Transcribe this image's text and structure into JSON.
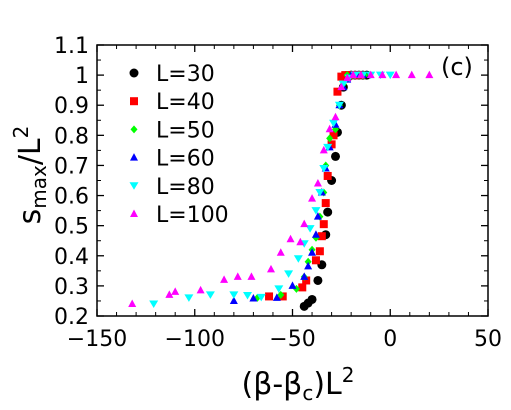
{
  "chart_data": {
    "type": "scatter",
    "panel_label": "(c)",
    "xlabel": {
      "prefix": "(β-β",
      "sub": "c",
      "mid": ")L",
      "sup": "2"
    },
    "ylabel": {
      "main": "s",
      "sub": "max",
      "mid": "/L",
      "sup": "2"
    },
    "xlim": [
      -150,
      50
    ],
    "ylim": [
      0.2,
      1.1
    ],
    "xticks": [
      -150,
      -100,
      -50,
      0,
      50
    ],
    "xtick_labels": [
      "−150",
      "−100",
      "−50",
      "0",
      "50"
    ],
    "yticks": [
      0.2,
      0.3,
      0.4,
      0.5,
      0.6,
      0.7,
      0.8,
      0.9,
      1.0,
      1.1
    ],
    "ytick_labels": [
      "0.2",
      "0.3",
      "0.4",
      "0.5",
      "0.6",
      "0.7",
      "0.8",
      "0.9",
      "1",
      "1.1"
    ],
    "grid": false,
    "legend_position": "top-left",
    "series": [
      {
        "name": "L=30",
        "marker": "circle",
        "color": "#000000",
        "points": [
          [
            -44,
            0.232
          ],
          [
            -42,
            0.243
          ],
          [
            -40,
            0.255
          ],
          [
            -37,
            0.318
          ],
          [
            -35,
            0.37
          ],
          [
            -33,
            0.47
          ],
          [
            -32,
            0.545
          ],
          [
            -30,
            0.65
          ],
          [
            -28,
            0.73
          ],
          [
            -27,
            0.81
          ],
          [
            -25,
            0.9
          ],
          [
            -24,
            0.96
          ],
          [
            -22,
            0.99
          ],
          [
            -20,
            1.0
          ],
          [
            -18,
            1.0
          ],
          [
            -16,
            1.0
          ],
          [
            -14,
            1.0
          ],
          [
            -12,
            1.0
          ]
        ]
      },
      {
        "name": "L=40",
        "marker": "square",
        "color": "#ff0000",
        "points": [
          [
            -62,
            0.265
          ],
          [
            -55,
            0.265
          ],
          [
            -45,
            0.295
          ],
          [
            -43,
            0.318
          ],
          [
            -38,
            0.385
          ],
          [
            -36,
            0.415
          ],
          [
            -35,
            0.465
          ],
          [
            -34,
            0.505
          ],
          [
            -33,
            0.575
          ],
          [
            -32,
            0.665
          ],
          [
            -30,
            0.77
          ],
          [
            -29,
            0.8
          ],
          [
            -27,
            0.945
          ],
          [
            -25,
            0.995
          ],
          [
            -23,
            1.0
          ],
          [
            -21,
            1.0
          ],
          [
            -19,
            1.0
          ],
          [
            -17,
            1.0
          ],
          [
            -15,
            1.0
          ]
        ]
      },
      {
        "name": "L=50",
        "marker": "diamond",
        "color": "#00ff00",
        "points": [
          [
            -68,
            0.26
          ],
          [
            -56,
            0.27
          ],
          [
            -48,
            0.29
          ],
          [
            -44,
            0.33
          ],
          [
            -42,
            0.38
          ],
          [
            -40,
            0.42
          ],
          [
            -38,
            0.46
          ],
          [
            -36,
            0.53
          ],
          [
            -34,
            0.61
          ],
          [
            -33,
            0.7
          ],
          [
            -31,
            0.79
          ],
          [
            -28,
            0.82
          ],
          [
            -26,
            0.9
          ],
          [
            -24,
            0.97
          ],
          [
            -22,
            1.0
          ],
          [
            -19,
            1.0
          ],
          [
            -16,
            1.0
          ],
          [
            -13,
            1.0
          ]
        ]
      },
      {
        "name": "L=60",
        "marker": "triangle-up",
        "color": "#0000ff",
        "points": [
          [
            -80,
            0.25
          ],
          [
            -70,
            0.258
          ],
          [
            -58,
            0.26
          ],
          [
            -50,
            0.3
          ],
          [
            -44,
            0.33
          ],
          [
            -42,
            0.365
          ],
          [
            -40,
            0.41
          ],
          [
            -38,
            0.47
          ],
          [
            -37,
            0.53
          ],
          [
            -35,
            0.61
          ],
          [
            -33,
            0.69
          ],
          [
            -31,
            0.76
          ],
          [
            -28,
            0.835
          ],
          [
            -26,
            0.9
          ],
          [
            -24,
            0.96
          ],
          [
            -22,
            0.985
          ],
          [
            -20,
            1.0
          ],
          [
            -17,
            1.0
          ],
          [
            -14,
            1.0
          ]
        ]
      },
      {
        "name": "L=80",
        "marker": "triangle-down",
        "color": "#00ffff",
        "points": [
          [
            -121,
            0.24
          ],
          [
            -103,
            0.26
          ],
          [
            -92,
            0.27
          ],
          [
            -80,
            0.27
          ],
          [
            -73,
            0.268
          ],
          [
            -66,
            0.262
          ],
          [
            -57,
            0.29
          ],
          [
            -52,
            0.34
          ],
          [
            -47,
            0.39
          ],
          [
            -44,
            0.44
          ],
          [
            -41,
            0.49
          ],
          [
            -38,
            0.55
          ],
          [
            -36,
            0.61
          ],
          [
            -34,
            0.69
          ],
          [
            -32,
            0.76
          ],
          [
            -29,
            0.84
          ],
          [
            -26,
            0.9
          ],
          [
            -24,
            0.97
          ],
          [
            -21,
            0.99
          ],
          [
            -18,
            1.0
          ],
          [
            -14,
            1.0
          ],
          [
            -10,
            1.0
          ],
          [
            -5,
            1.0
          ],
          [
            0,
            1.0
          ]
        ]
      },
      {
        "name": "L=100",
        "marker": "triangle-up",
        "color": "#ff00ff",
        "points": [
          [
            -132,
            0.24
          ],
          [
            -113,
            0.27
          ],
          [
            -110,
            0.28
          ],
          [
            -97,
            0.285
          ],
          [
            -85,
            0.32
          ],
          [
            -78,
            0.33
          ],
          [
            -71,
            0.33
          ],
          [
            -61,
            0.355
          ],
          [
            -56,
            0.41
          ],
          [
            -51,
            0.455
          ],
          [
            -46,
            0.445
          ],
          [
            -44,
            0.505
          ],
          [
            -40,
            0.59
          ],
          [
            -37,
            0.64
          ],
          [
            -34,
            0.75
          ],
          [
            -31,
            0.82
          ],
          [
            -28,
            0.86
          ],
          [
            -25,
            0.96
          ],
          [
            -22,
            0.99
          ],
          [
            -19,
            1.0
          ],
          [
            -15,
            1.0
          ],
          [
            -10,
            1.0
          ],
          [
            -4,
            1.0
          ],
          [
            3,
            1.0
          ],
          [
            11,
            1.0
          ],
          [
            20,
            1.0
          ]
        ]
      }
    ]
  }
}
